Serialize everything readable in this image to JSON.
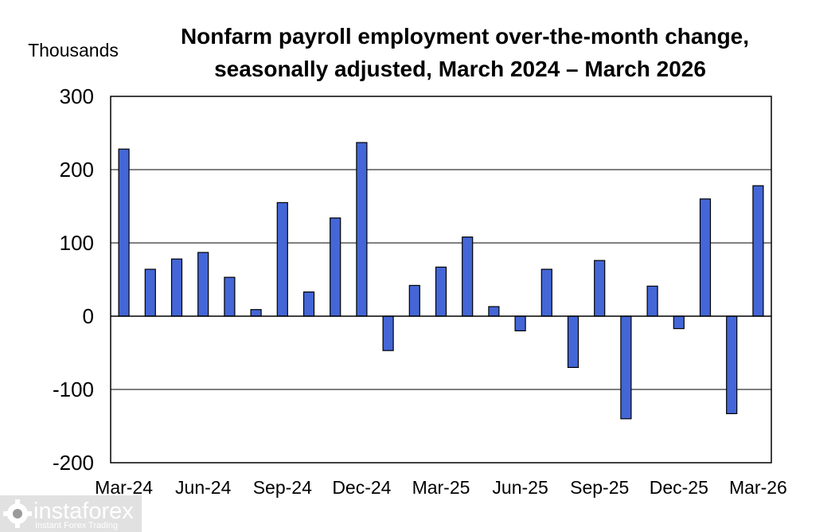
{
  "chart_data": {
    "type": "bar",
    "title": "Nonfarm payroll employment over-the-month change, seasonally adjusted, March 2024 – March 2026",
    "title_lines": [
      "Nonfarm payroll employment over-the-month change,",
      "seasonally adjusted, March 2024 – March 2026"
    ],
    "ylabel": "Thousands",
    "xlabel": "",
    "ylim": [
      -200,
      300
    ],
    "yticks": [
      300,
      200,
      100,
      0,
      -100,
      -200
    ],
    "grid": true,
    "bar_color": "#4466d6",
    "categories": [
      "Mar-24",
      "Apr-24",
      "May-24",
      "Jun-24",
      "Jul-24",
      "Aug-24",
      "Sep-24",
      "Oct-24",
      "Nov-24",
      "Dec-24",
      "Jan-25",
      "Feb-25",
      "Mar-25",
      "Apr-25",
      "May-25",
      "Jun-25",
      "Jul-25",
      "Aug-25",
      "Sep-25",
      "Oct-25",
      "Nov-25",
      "Dec-25",
      "Jan-26",
      "Feb-26",
      "Mar-26"
    ],
    "values": [
      228,
      64,
      78,
      87,
      53,
      9,
      155,
      33,
      134,
      237,
      -47,
      42,
      67,
      108,
      13,
      -20,
      64,
      -70,
      76,
      -140,
      41,
      -17,
      160,
      -133,
      178
    ],
    "xtick_labels": [
      "Mar-24",
      "Jun-24",
      "Sep-24",
      "Dec-24",
      "Mar-25",
      "Jun-25",
      "Sep-25",
      "Dec-25",
      "Mar-26"
    ]
  },
  "watermark": {
    "name": "instaforex",
    "tagline": "Instant Forex Trading",
    "icon": "gear-logo-icon"
  }
}
